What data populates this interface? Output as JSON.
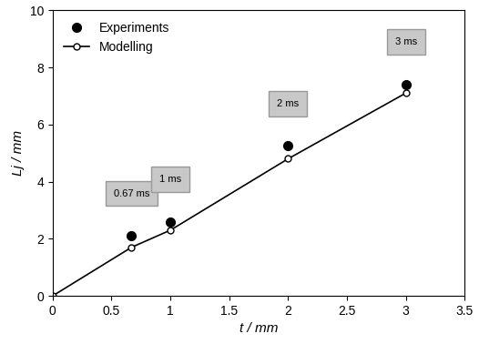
{
  "chart_data": {
    "type": "scatter",
    "x_label": "t / mm",
    "y_label": "Lj / mm",
    "xlim": [
      0,
      3.5
    ],
    "xticks": [
      0,
      0.5,
      1,
      1.5,
      2,
      2.5,
      3,
      3.5
    ],
    "ylim": [
      0,
      10
    ],
    "yticks": [
      0,
      2,
      4,
      6,
      8,
      10
    ],
    "legend": "upper left",
    "grid": false,
    "series": [
      {
        "name": "Experiments",
        "type": "scatter",
        "color": "#000000",
        "marker": "filled",
        "x": [
          0.67,
          1,
          2,
          3
        ],
        "values": [
          2.1,
          2.6,
          5.25,
          7.4
        ]
      },
      {
        "name": "Modelling",
        "type": "line",
        "color": "#000000",
        "marker": "open",
        "line_style": "solid",
        "x": [
          0,
          0.67,
          1,
          2,
          3
        ],
        "values": [
          0,
          1.7,
          2.3,
          4.8,
          7.1
        ]
      }
    ],
    "annotations": [
      "0.67 ms",
      "1 ms",
      "2 ms",
      "3 ms"
    ]
  }
}
